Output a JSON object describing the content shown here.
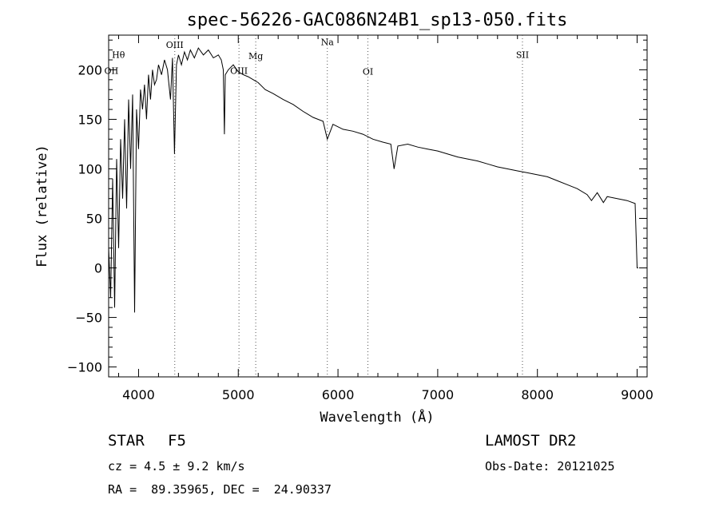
{
  "chart_data": {
    "type": "line",
    "title": "spec-56226-GAC086N24B1_sp13-050.fits",
    "xlabel": "Wavelength (Å)",
    "ylabel": "Flux (relative)",
    "xlim": [
      3700,
      9100
    ],
    "ylim": [
      -110,
      235
    ],
    "x_ticks": [
      4000,
      5000,
      6000,
      7000,
      8000,
      9000
    ],
    "x_tick_labels": [
      "4000",
      "5000",
      "6000",
      "7000",
      "8000",
      "9000"
    ],
    "y_ticks": [
      -100,
      -50,
      0,
      50,
      100,
      150,
      200
    ],
    "y_tick_labels": [
      "−100",
      "−50",
      "0",
      "50",
      "100",
      "150",
      "200"
    ],
    "grid": false,
    "line_color": "#000000",
    "spectrum": {
      "x": [
        3700,
        3720,
        3740,
        3760,
        3780,
        3800,
        3820,
        3840,
        3860,
        3880,
        3900,
        3920,
        3940,
        3960,
        3980,
        4000,
        4020,
        4040,
        4060,
        4080,
        4100,
        4120,
        4140,
        4160,
        4180,
        4200,
        4230,
        4260,
        4290,
        4320,
        4340,
        4360,
        4380,
        4400,
        4430,
        4460,
        4490,
        4520,
        4560,
        4600,
        4650,
        4700,
        4750,
        4800,
        4830,
        4850,
        4861,
        4870,
        4900,
        4950,
        5000,
        5050,
        5100,
        5150,
        5200,
        5270,
        5350,
        5450,
        5550,
        5650,
        5750,
        5850,
        5893,
        5950,
        6050,
        6150,
        6250,
        6350,
        6450,
        6530,
        6563,
        6600,
        6700,
        6800,
        6900,
        7000,
        7100,
        7200,
        7300,
        7400,
        7500,
        7600,
        7700,
        7800,
        7900,
        8000,
        8100,
        8200,
        8300,
        8400,
        8498,
        8542,
        8600,
        8662,
        8700,
        8800,
        8900,
        8980,
        9000,
        9010
      ],
      "y": [
        20,
        -30,
        90,
        -40,
        110,
        20,
        130,
        70,
        150,
        60,
        170,
        100,
        175,
        -45,
        160,
        120,
        180,
        160,
        185,
        150,
        195,
        170,
        200,
        185,
        190,
        205,
        195,
        210,
        200,
        170,
        212,
        115,
        205,
        215,
        205,
        218,
        210,
        220,
        212,
        222,
        215,
        220,
        212,
        215,
        210,
        200,
        135,
        195,
        200,
        205,
        198,
        195,
        193,
        190,
        187,
        180,
        176,
        170,
        165,
        158,
        152,
        148,
        130,
        145,
        140,
        138,
        135,
        130,
        127,
        125,
        100,
        123,
        125,
        122,
        120,
        118,
        115,
        112,
        110,
        108,
        105,
        102,
        100,
        98,
        96,
        94,
        92,
        88,
        84,
        80,
        74,
        68,
        76,
        66,
        72,
        70,
        68,
        65,
        0,
        0
      ]
    },
    "line_markers": [
      {
        "label": "Hθ",
        "x": 3798,
        "label_y": 212,
        "line": false
      },
      {
        "label": "OII",
        "x": 3727,
        "label_y": 196,
        "line": false
      },
      {
        "label": "OIII",
        "x": 4363,
        "label_y": 222,
        "line": true
      },
      {
        "label": "OIII",
        "x": 5007,
        "label_y": 196,
        "line": true
      },
      {
        "label": "Mg",
        "x": 5175,
        "label_y": 211,
        "line": true
      },
      {
        "label": "Na",
        "x": 5893,
        "label_y": 225,
        "line": true
      },
      {
        "label": "OI",
        "x": 6300,
        "label_y": 195,
        "line": true
      },
      {
        "label": "SII",
        "x": 7850,
        "label_y": 212,
        "line": true
      }
    ]
  },
  "info": {
    "object_class": "STAR",
    "subclass": "F5",
    "survey": "LAMOST DR2",
    "cz": "cz = 4.5 ± 9.2 km/s",
    "obs_date": "Obs-Date: 20121025",
    "coords": "RA =  89.35965, DEC =  24.90337"
  }
}
